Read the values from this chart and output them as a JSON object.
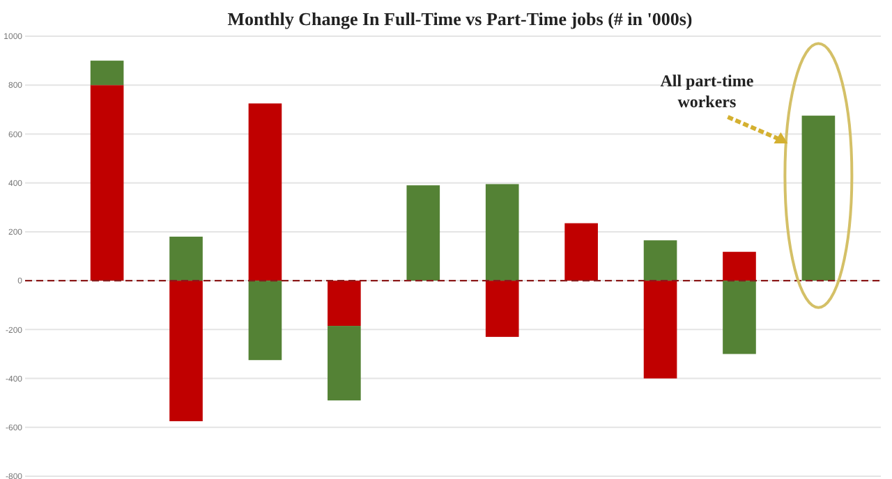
{
  "chart_data": {
    "type": "bar",
    "title": "Monthly Change In Full-Time vs Part-Time jobs (# in '000s)",
    "categories": [
      null,
      null,
      null,
      null,
      null,
      null,
      null,
      null,
      null,
      null
    ],
    "stacked": true,
    "series": [
      {
        "color": "#c00000",
        "values": [
          800,
          -575,
          725,
          -185,
          null,
          -230,
          235,
          -400,
          118,
          null
        ]
      },
      {
        "color": "#548235",
        "values": [
          100,
          180,
          -325,
          -305,
          390,
          395,
          null,
          165,
          -300,
          675
        ]
      }
    ],
    "ylim": [
      -800,
      1000
    ],
    "yticks": [
      -800,
      -600,
      -400,
      -200,
      0,
      200,
      400,
      600,
      800,
      1000
    ],
    "grid": "y",
    "ref_lines": [
      {
        "axis": "y",
        "value": 0,
        "color": "#8b1a1a",
        "line_style": "dashed"
      }
    ],
    "annotations": [
      "All part-time workers"
    ]
  }
}
